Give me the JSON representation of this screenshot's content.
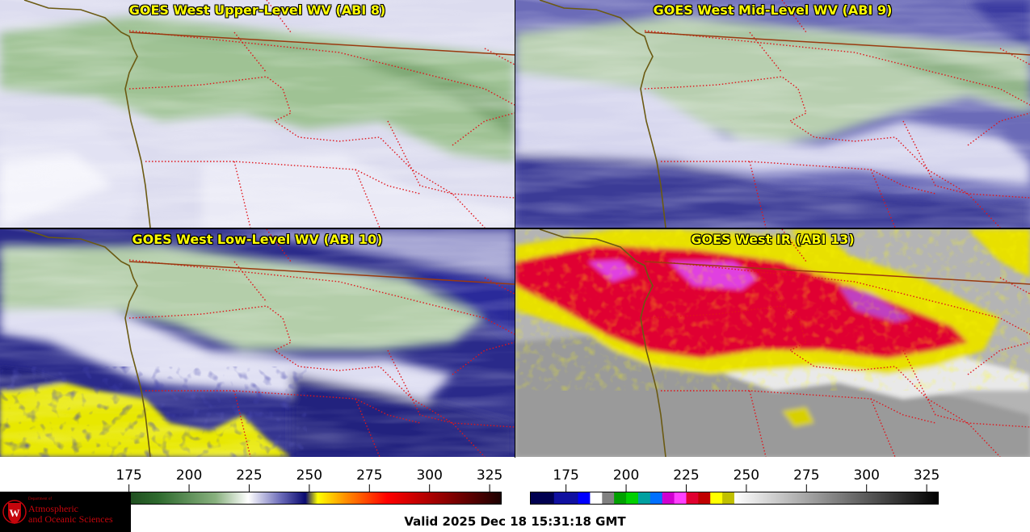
{
  "panels": [
    {
      "title": "GOES West Upper-Level WV (ABI 8)"
    },
    {
      "title": "GOES West Mid-Level WV (ABI 9)"
    },
    {
      "title": "GOES West Low-Level WV (ABI 10)"
    },
    {
      "title": "GOES West IR (ABI 13)"
    }
  ],
  "colorbars": {
    "wv": {
      "ticks": [
        "175",
        "200",
        "225",
        "250",
        "275",
        "300",
        "325"
      ],
      "min": 160,
      "max": 330
    },
    "ir": {
      "ticks": [
        "175",
        "200",
        "225",
        "250",
        "275",
        "300",
        "325"
      ],
      "min": 160,
      "max": 330
    }
  },
  "valid_time": "Valid 2025 Dec 18 15:31:18 GMT",
  "logo": {
    "dept": "Department of",
    "line1": "Atmospheric",
    "line2": "and Oceanic Sciences",
    "letter": "W"
  },
  "colors": {
    "coast": "#6b5a12",
    "state_border": "#e0151b",
    "country_border": "#9a3a10",
    "title": "#ffff00"
  }
}
